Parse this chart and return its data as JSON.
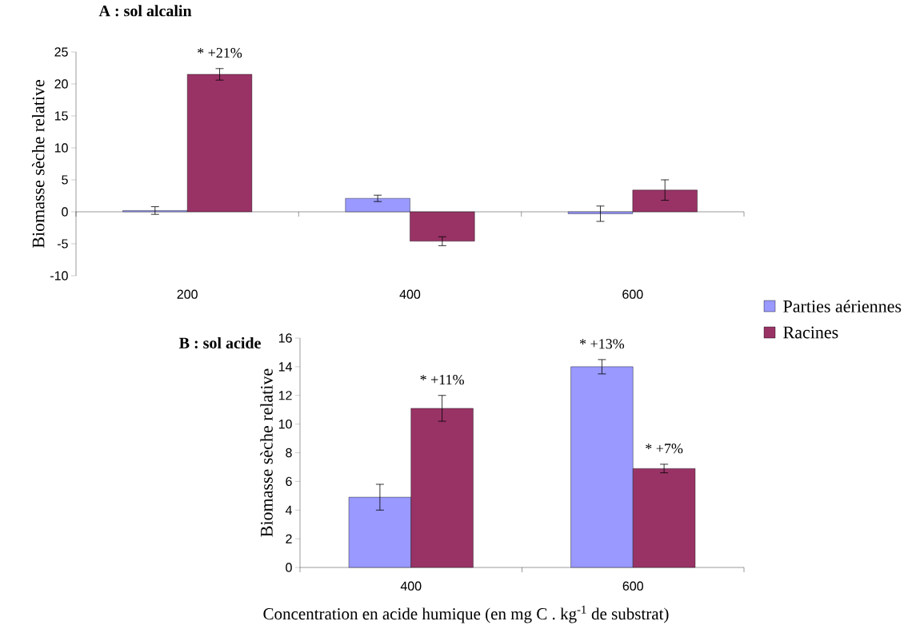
{
  "chart_data": [
    {
      "type": "bar",
      "title": "A : sol alcalin",
      "ylabel": "Biomasse sèche relative",
      "categories": [
        "200",
        "400",
        "600"
      ],
      "series": [
        {
          "color": "#9999ff",
          "values": [
            0.2,
            2.1,
            -0.3
          ],
          "errors": [
            0.6,
            0.5,
            1.2
          ]
        },
        {
          "color": "#993366",
          "values": [
            21.5,
            -4.6,
            3.4
          ],
          "errors": [
            0.9,
            0.7,
            1.6
          ]
        }
      ],
      "ylim": [
        -10,
        25
      ],
      "yticks": [
        -10,
        -5,
        0,
        5,
        10,
        15,
        20,
        25
      ],
      "annotations": [
        {
          "text": "* +21%",
          "x": "200",
          "y": 21.5
        }
      ]
    },
    {
      "type": "bar",
      "title": "B : sol acide",
      "ylabel": "Biomasse sèche relative",
      "xlabel": "Concentration en acide humique (en mg C . kg$^{-1}$ de substrat)",
      "categories": [
        "400",
        "600"
      ],
      "series": [
        {
          "name": "Parties aériennes",
          "color": "#9999ff",
          "values": [
            4.9,
            14.0
          ],
          "errors": [
            0.9,
            0.5
          ]
        },
        {
          "name": "Racines",
          "color": "#993366",
          "values": [
            11.1,
            6.9
          ],
          "errors": [
            0.9,
            0.3
          ]
        }
      ],
      "ylim": [
        0,
        16
      ],
      "yticks": [
        0,
        2,
        4,
        6,
        8,
        10,
        12,
        14,
        16
      ],
      "legend": "right",
      "annotations": [
        {
          "text": "* +11%",
          "x": "400",
          "y": 11.1
        },
        {
          "text": "* +13%",
          "x": "600",
          "y": 14.0
        },
        {
          "text": "* +7%",
          "x": "600",
          "y": 6.9
        }
      ]
    }
  ]
}
